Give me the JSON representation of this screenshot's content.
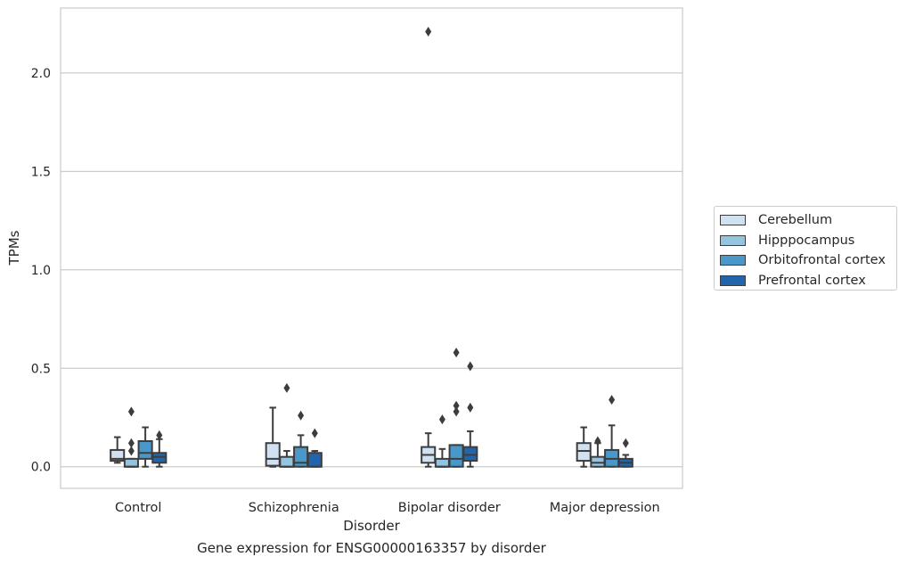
{
  "caption": "Gene expression for ENSG00000163357 by disorder",
  "chart_data": {
    "type": "box",
    "title": "",
    "xlabel": "Disorder",
    "ylabel": "TPMs",
    "ylim": [
      -0.11,
      2.33
    ],
    "yticks": [
      0.0,
      0.5,
      1.0,
      1.5,
      2.0
    ],
    "ytick_labels": [
      "0.0",
      "0.5",
      "1.0",
      "1.5",
      "2.0"
    ],
    "grid": "horizontal",
    "legend_position": "right",
    "categories": [
      "Control",
      "Schizophrenia",
      "Bipolar disorder",
      "Major depression"
    ],
    "series": [
      {
        "name": "Cerebellum",
        "color": "#d0e1f2",
        "boxes": [
          {
            "whisker_low": 0.02,
            "q1": 0.03,
            "median": 0.04,
            "q3": 0.085,
            "whisker_high": 0.15,
            "outliers": []
          },
          {
            "whisker_low": 0.0,
            "q1": 0.005,
            "median": 0.04,
            "q3": 0.12,
            "whisker_high": 0.3,
            "outliers": []
          },
          {
            "whisker_low": 0.0,
            "q1": 0.02,
            "median": 0.06,
            "q3": 0.1,
            "whisker_high": 0.17,
            "outliers": [
              2.21
            ]
          },
          {
            "whisker_low": 0.0,
            "q1": 0.03,
            "median": 0.08,
            "q3": 0.12,
            "whisker_high": 0.2,
            "outliers": []
          }
        ]
      },
      {
        "name": "Hipppocampus",
        "color": "#94c4df",
        "boxes": [
          {
            "whisker_low": 0.0,
            "q1": 0.0,
            "median": 0.0,
            "q3": 0.04,
            "whisker_high": 0.04,
            "outliers": [
              0.08,
              0.12,
              0.28
            ]
          },
          {
            "whisker_low": 0.0,
            "q1": 0.0,
            "median": 0.0,
            "q3": 0.05,
            "whisker_high": 0.08,
            "outliers": [
              0.4
            ]
          },
          {
            "whisker_low": 0.0,
            "q1": 0.0,
            "median": 0.0,
            "q3": 0.04,
            "whisker_high": 0.09,
            "outliers": [
              0.24
            ]
          },
          {
            "whisker_low": 0.0,
            "q1": 0.0,
            "median": 0.02,
            "q3": 0.05,
            "whisker_high": 0.12,
            "outliers": [
              0.13
            ]
          }
        ]
      },
      {
        "name": "Orbitofrontal cortex",
        "color": "#4a98c9",
        "boxes": [
          {
            "whisker_low": 0.0,
            "q1": 0.04,
            "median": 0.07,
            "q3": 0.13,
            "whisker_high": 0.2,
            "outliers": []
          },
          {
            "whisker_low": 0.0,
            "q1": 0.0,
            "median": 0.02,
            "q3": 0.1,
            "whisker_high": 0.16,
            "outliers": [
              0.26
            ]
          },
          {
            "whisker_low": 0.0,
            "q1": 0.0,
            "median": 0.04,
            "q3": 0.11,
            "whisker_high": 0.11,
            "outliers": [
              0.28,
              0.31,
              0.58
            ]
          },
          {
            "whisker_low": 0.0,
            "q1": 0.0,
            "median": 0.04,
            "q3": 0.085,
            "whisker_high": 0.21,
            "outliers": [
              0.34
            ]
          }
        ]
      },
      {
        "name": "Prefrontal cortex",
        "color": "#2166ac",
        "boxes": [
          {
            "whisker_low": 0.0,
            "q1": 0.02,
            "median": 0.05,
            "q3": 0.07,
            "whisker_high": 0.14,
            "outliers": [
              0.16
            ]
          },
          {
            "whisker_low": 0.0,
            "q1": 0.0,
            "median": 0.0,
            "q3": 0.07,
            "whisker_high": 0.08,
            "outliers": [
              0.17
            ]
          },
          {
            "whisker_low": 0.0,
            "q1": 0.03,
            "median": 0.06,
            "q3": 0.1,
            "whisker_high": 0.18,
            "outliers": [
              0.3,
              0.51
            ]
          },
          {
            "whisker_low": 0.0,
            "q1": 0.0,
            "median": 0.02,
            "q3": 0.04,
            "whisker_high": 0.06,
            "outliers": [
              0.12
            ]
          }
        ]
      }
    ]
  }
}
